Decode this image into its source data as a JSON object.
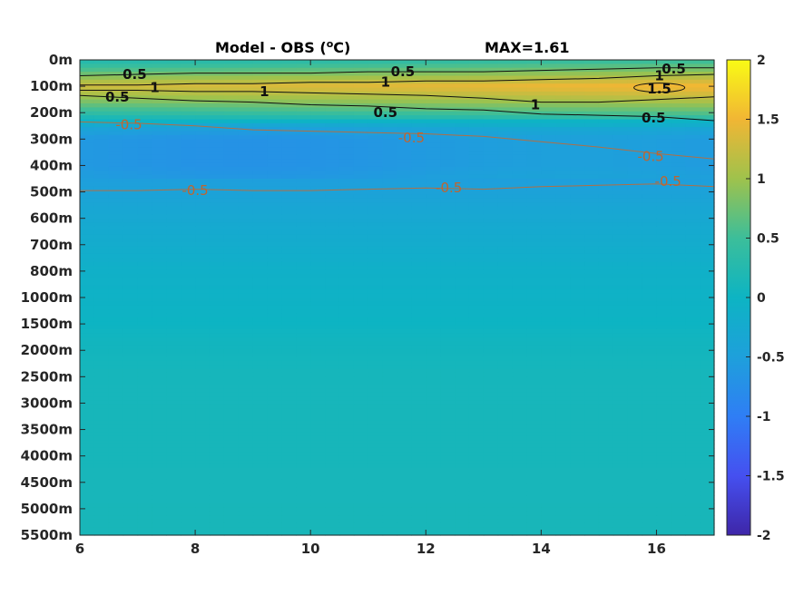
{
  "chart_data": {
    "type": "heatmap",
    "title": "Model - OBS (",
    "title_sup": "o",
    "title_unit": "C)",
    "max_label": "MAX=1.61",
    "x": {
      "range": [
        6,
        17
      ],
      "ticks": [
        "6",
        "8",
        "10",
        "12",
        "14",
        "16"
      ],
      "tick_values": [
        6,
        8,
        10,
        12,
        14,
        16
      ]
    },
    "y": {
      "scale": "categorical-depth",
      "tick_labels": [
        "0m",
        "100m",
        "200m",
        "300m",
        "400m",
        "500m",
        "600m",
        "700m",
        "800m",
        "1000m",
        "1500m",
        "2000m",
        "2500m",
        "3000m",
        "3500m",
        "4000m",
        "4500m",
        "5000m",
        "5500m"
      ]
    },
    "colorbar": {
      "range": [
        -2,
        2
      ],
      "ticks": [
        "2",
        "1.5",
        "1",
        "0.5",
        "0",
        "-0.5",
        "-1",
        "-1.5",
        "-2"
      ],
      "tick_values": [
        2,
        1.5,
        1,
        0.5,
        0,
        -0.5,
        -1,
        -1.5,
        -2
      ],
      "colormap": "parula"
    },
    "depth_profile": [
      {
        "depth_index": 0,
        "value": 0.2
      },
      {
        "depth_index": 0.4,
        "value": 0.6
      },
      {
        "depth_index": 1.0,
        "value": 1.3
      },
      {
        "depth_index": 1.5,
        "value": 0.9
      },
      {
        "depth_index": 2.0,
        "value": 0.4
      },
      {
        "depth_index": 2.6,
        "value": -0.4
      },
      {
        "depth_index": 3.0,
        "value": -0.6
      },
      {
        "depth_index": 4.0,
        "value": -0.6
      },
      {
        "depth_index": 5.0,
        "value": -0.45
      },
      {
        "depth_index": 6.0,
        "value": -0.3
      },
      {
        "depth_index": 7.0,
        "value": -0.2
      },
      {
        "depth_index": 8.0,
        "value": -0.1
      },
      {
        "depth_index": 9.0,
        "value": -0.05
      },
      {
        "depth_index": 10.0,
        "value": 0.0
      },
      {
        "depth_index": 10.5,
        "value": 0.05
      },
      {
        "depth_index": 12.0,
        "value": 0.1
      },
      {
        "depth_index": 18.0,
        "value": 0.12
      }
    ],
    "contour_labels": [
      {
        "text": "0.5",
        "x": 6.95,
        "depth_index": 0.55
      },
      {
        "text": "1",
        "x": 7.3,
        "depth_index": 1.05
      },
      {
        "text": "0.5",
        "x": 6.65,
        "depth_index": 1.4
      },
      {
        "text": "1",
        "x": 9.2,
        "depth_index": 1.2
      },
      {
        "text": "0.5",
        "x": 11.6,
        "depth_index": 0.45
      },
      {
        "text": "1",
        "x": 11.3,
        "depth_index": 0.85
      },
      {
        "text": "0.5",
        "x": 11.3,
        "depth_index": 2.0
      },
      {
        "text": "1",
        "x": 13.9,
        "depth_index": 1.7
      },
      {
        "text": "0.5",
        "x": 16.3,
        "depth_index": 0.35
      },
      {
        "text": "1",
        "x": 16.05,
        "depth_index": 0.6
      },
      {
        "text": "1.5",
        "x": 16.05,
        "depth_index": 1.1
      },
      {
        "text": "0.5",
        "x": 15.95,
        "depth_index": 2.2
      },
      {
        "text": "-0.5",
        "x": 6.85,
        "depth_index": 2.45
      },
      {
        "text": "-0.5",
        "x": 11.75,
        "depth_index": 2.95
      },
      {
        "text": "-0.5",
        "x": 8.0,
        "depth_index": 4.95
      },
      {
        "text": "-0.5",
        "x": 12.4,
        "depth_index": 4.85
      },
      {
        "text": "-0.5",
        "x": 15.9,
        "depth_index": 3.65
      },
      {
        "text": "-0.5",
        "x": 16.2,
        "depth_index": 4.6
      }
    ]
  }
}
